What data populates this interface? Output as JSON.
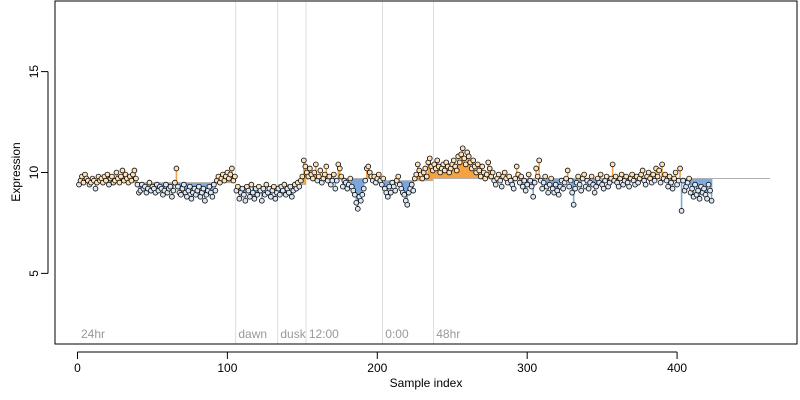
{
  "chart_data": {
    "type": "scatter",
    "title": "",
    "xlabel": "Sample index",
    "ylabel": "Expression",
    "xlim": [
      -15,
      480
    ],
    "ylim": [
      1.5,
      18.5
    ],
    "x_ticks": [
      0,
      100,
      200,
      300,
      400
    ],
    "y_ticks": [
      5,
      10,
      15
    ],
    "grid": false,
    "colors": {
      "above": "#f4a340",
      "below": "#7aa6dc",
      "point_edge": "#000000",
      "divider": "#dddddd",
      "region_label": "#999999"
    },
    "regions": [
      {
        "label": "24hr",
        "start": 1,
        "end": 105,
        "level": 9.5
      },
      {
        "label": "dawn",
        "start": 106,
        "end": 133,
        "level": 9.3
      },
      {
        "label": "dusk",
        "start": 134,
        "end": 152,
        "level": 9.4
      },
      {
        "label": "12:00",
        "start": 153,
        "end": 203,
        "level": 9.7
      },
      {
        "label": "0:00",
        "start": 204,
        "end": 237,
        "level": 9.6
      },
      {
        "label": "48hr",
        "start": 238,
        "end": 462,
        "level": 9.7
      }
    ],
    "series": [
      {
        "x_start": 1,
        "values": [
          9.4,
          9.6,
          9.8,
          9.5,
          9.9,
          9.7,
          9.6,
          9.4,
          9.5,
          9.7,
          9.6,
          9.2,
          9.5,
          9.8,
          9.6,
          9.7,
          9.5,
          9.8,
          9.6,
          9.9,
          9.4,
          9.7,
          9.8,
          9.5,
          9.6,
          10.0,
          9.7,
          9.5,
          9.8,
          10.1,
          9.6,
          9.9,
          9.7,
          9.5,
          9.8,
          9.6,
          9.9,
          10.1,
          9.7,
          9.4,
          9.0,
          9.1,
          9.4,
          9.2,
          9.3,
          9.0,
          9.2,
          9.5,
          9.1,
          9.3,
          9.2,
          9.0,
          9.4,
          9.1,
          9.3,
          9.2,
          8.9,
          9.1,
          9.4,
          9.0,
          9.2,
          9.3,
          8.8,
          9.1,
          9.5,
          10.2,
          9.3,
          9.0,
          8.9,
          9.2,
          9.4,
          9.0,
          8.8,
          9.1,
          9.3,
          8.7,
          9.0,
          9.2,
          8.9,
          9.1,
          9.3,
          8.8,
          9.0,
          9.2,
          8.6,
          8.9,
          9.1,
          9.3,
          9.0,
          8.8,
          9.4,
          9.1,
          9.6,
          9.8,
          9.5,
          9.7,
          9.9,
          9.6,
          9.8,
          10.0,
          9.7,
          9.9,
          10.2,
          9.6,
          9.8,
          9.1,
          9.3,
          8.7,
          9.0,
          9.2,
          8.9,
          8.6,
          9.3,
          9.1,
          8.8,
          9.4,
          9.0,
          8.7,
          9.2,
          8.9,
          9.3,
          9.1,
          8.6,
          9.2,
          8.9,
          9.4,
          9.0,
          9.2,
          8.8,
          9.1,
          9.3,
          8.7,
          9.0,
          9.2,
          8.9,
          9.3,
          9.1,
          9.4,
          8.9,
          9.2,
          9.0,
          9.3,
          8.8,
          9.1,
          9.4,
          9.2,
          9.5,
          9.3,
          9.6,
          9.8,
          10.6,
          10.3,
          10.0,
          9.8,
          10.2,
          9.9,
          9.7,
          10.0,
          10.4,
          9.6,
          9.8,
          10.1,
          9.5,
          9.7,
          9.9,
          10.3,
          9.6,
          9.8,
          9.4,
          9.6,
          9.9,
          9.2,
          9.6,
          10.4,
          10.2,
          9.8,
          9.3,
          9.6,
          9.5,
          9.2,
          9.4,
          9.7,
          9.3,
          9.1,
          8.9,
          8.5,
          8.2,
          8.8,
          8.6,
          8.9,
          9.2,
          9.6,
          10.2,
          10.3,
          10.0,
          9.8,
          9.6,
          9.8,
          9.5,
          9.7,
          9.9,
          9.6,
          9.4,
          9.7,
          9.2,
          9.0,
          8.8,
          9.3,
          9.0,
          9.5,
          9.3,
          9.1,
          9.6,
          9.8,
          9.4,
          9.2,
          9.0,
          8.9,
          8.6,
          8.4,
          9.0,
          9.2,
          9.4,
          9.1,
          9.7,
          9.9,
          10.4,
          10.1,
          9.9,
          9.7,
          10.0,
          10.2,
          9.8,
          10.5,
          10.7,
          10.3,
          10.1,
          10.4,
          10.2,
          10.6,
          10.3,
          10.0,
          10.2,
          10.4,
          10.1,
          10.5,
          10.3,
          10.0,
          10.2,
          10.4,
          10.6,
          10.3,
          10.1,
          10.8,
          10.5,
          10.9,
          11.2,
          10.7,
          10.4,
          11.0,
          10.8,
          10.5,
          10.2,
          10.6,
          10.3,
          10.0,
          10.4,
          10.1,
          9.8,
          10.3,
          10.0,
          9.7,
          9.9,
          10.5,
          10.2,
          9.8,
          10.0,
          9.6,
          9.4,
          9.7,
          9.9,
          9.6,
          9.3,
          9.8,
          10.0,
          9.7,
          9.5,
          9.8,
          9.6,
          9.4,
          9.2,
          9.7,
          10.3,
          9.9,
          9.5,
          9.8,
          9.3,
          9.6,
          9.1,
          9.4,
          9.9,
          9.6,
          9.3,
          8.8,
          9.5,
          10.2,
          9.8,
          10.6,
          9.6,
          9.2,
          9.5,
          9.8,
          9.3,
          9.0,
          9.4,
          9.7,
          9.2,
          9.0,
          9.4,
          9.1,
          8.9,
          9.3,
          9.6,
          9.2,
          9.5,
          9.7,
          10.1,
          9.3,
          9.6,
          9.0,
          8.4,
          9.2,
          9.5,
          9.8,
          9.4,
          9.1,
          9.7,
          9.9,
          9.3,
          9.6,
          9.2,
          9.5,
          9.8,
          9.4,
          9.0,
          9.3,
          9.7,
          9.5,
          9.9,
          9.4,
          9.2,
          9.6,
          9.8,
          9.3,
          9.5,
          9.7,
          10.4,
          9.6,
          9.8,
          9.5,
          9.3,
          9.7,
          9.9,
          9.4,
          9.6,
          9.8,
          9.5,
          9.3,
          9.7,
          9.9,
          9.6,
          9.4,
          9.8,
          9.5,
          9.7,
          9.9,
          10.1,
          9.6,
          9.4,
          9.8,
          10.0,
          9.7,
          9.5,
          9.9,
          9.6,
          10.2,
          9.8,
          10.1,
          9.5,
          10.4,
          9.7,
          9.9,
          9.6,
          9.3,
          9.8,
          9.5,
          9.2,
          9.7,
          10.0,
          9.4,
          9.6,
          10.2,
          8.1,
          9.6,
          9.1,
          9.3,
          9.5,
          9.7,
          9.0,
          9.2,
          8.8,
          9.4,
          8.9,
          9.1,
          8.7,
          9.3,
          9.0,
          9.2,
          8.9,
          8.7,
          9.4,
          9.1,
          8.6
        ]
      }
    ]
  }
}
